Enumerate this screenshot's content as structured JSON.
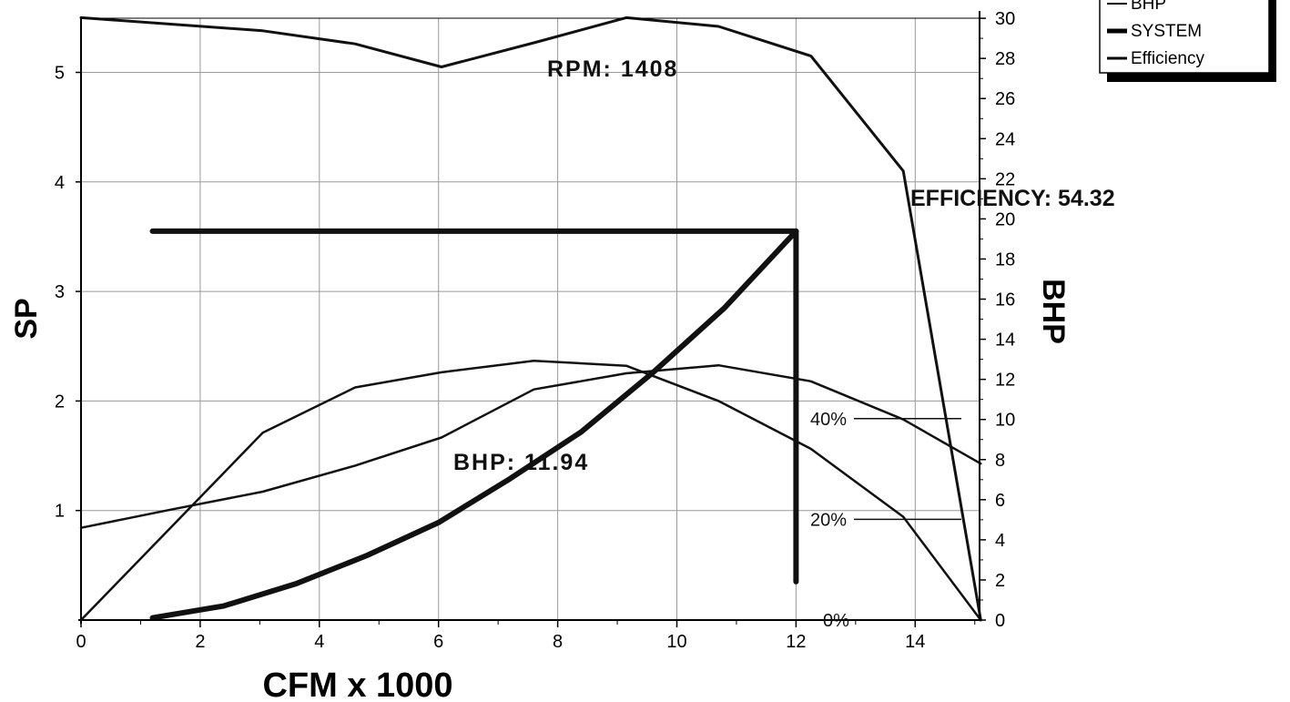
{
  "chart_data": {
    "type": "line",
    "xlabel": "CFM x 1000",
    "ylabel": "SP",
    "y2label": "BHP",
    "xlim": [
      0,
      15.1
    ],
    "ylim": [
      0,
      5.5
    ],
    "y2lim": [
      0,
      30
    ],
    "x_ticks": [
      "0",
      "2",
      "4",
      "6",
      "8",
      "10",
      "12",
      "14"
    ],
    "y_ticks": [
      "1",
      "2",
      "3",
      "4",
      "5"
    ],
    "y2_ticks": [
      "0",
      "2",
      "4",
      "6",
      "8",
      "10",
      "12",
      "14",
      "16",
      "18",
      "20",
      "22",
      "24",
      "26",
      "28",
      "30"
    ],
    "grid": true,
    "legend_position": "top-right",
    "legend": [
      {
        "name": "BHP"
      },
      {
        "name": "SYSTEM"
      },
      {
        "name": "Efficiency"
      }
    ],
    "series": [
      {
        "name": "SP",
        "axis": "left",
        "x": [
          0,
          3.05,
          4.6,
          6.05,
          7.6,
          9.15,
          10.7,
          12.25,
          13.8,
          15.1
        ],
        "y": [
          5.5,
          5.38,
          5.26,
          5.05,
          5.27,
          5.5,
          5.42,
          5.15,
          4.1,
          0.0
        ]
      },
      {
        "name": "BHP",
        "axis": "right",
        "x": [
          0,
          1.5,
          3.05,
          4.6,
          6.05,
          7.6,
          9.15,
          10.7,
          12.25,
          13.8,
          15.1
        ],
        "y": [
          4.6,
          5.5,
          6.4,
          7.7,
          9.1,
          11.5,
          12.3,
          12.7,
          11.9,
          10.0,
          7.8
        ]
      },
      {
        "name": "SYSTEM",
        "axis": "left",
        "x": [
          1.2,
          2.4,
          3.6,
          4.8,
          6.0,
          7.2,
          8.4,
          9.6,
          10.8,
          12.0
        ],
        "y": [
          0.02,
          0.13,
          0.33,
          0.59,
          0.89,
          1.29,
          1.72,
          2.26,
          2.85,
          3.55
        ]
      },
      {
        "name": "Efficiency",
        "axis": "pct",
        "x": [
          0,
          3.05,
          4.6,
          6.05,
          7.6,
          9.15,
          10.7,
          12.25,
          13.8,
          15.1
        ],
        "y": [
          0,
          37.2,
          46.2,
          49.2,
          51.5,
          50.5,
          43.5,
          34.0,
          20.5,
          0
        ]
      }
    ],
    "operating_point": {
      "x": 12.0,
      "sp": 3.55
    },
    "efficiency_scale": [
      {
        "label": "40%",
        "value": 40
      },
      {
        "label": "20%",
        "value": 20
      },
      {
        "label": "0%",
        "value": 0
      }
    ],
    "annotations": {
      "rpm": "RPM: 1408",
      "efficiency": "EFFICIENCY: 54.32",
      "bhp": "BHP: 11.94"
    }
  }
}
